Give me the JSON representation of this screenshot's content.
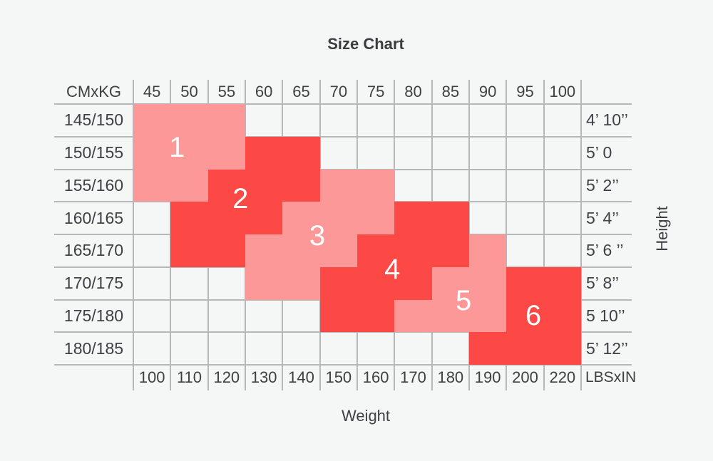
{
  "colors": {
    "red": "#fc4945",
    "pink": "#fd9899",
    "grid_line": "#b4b8b9",
    "text": "#3e4144",
    "number_text": "#ffffff",
    "background": "#f5f6f6"
  },
  "chart_data": {
    "type": "heatmap",
    "title": "Size Chart",
    "xlabel": "Weight",
    "ylabel": "Height",
    "corner_top_left": "CMxKG",
    "corner_bottom_right": "LBSxIN",
    "x_ticks_top_kg": [
      "45",
      "50",
      "55",
      "60",
      "65",
      "70",
      "75",
      "80",
      "85",
      "90",
      "95",
      "100"
    ],
    "x_ticks_bottom_lbs": [
      "100",
      "110",
      "120",
      "130",
      "140",
      "150",
      "160",
      "170",
      "180",
      "190",
      "200",
      "220"
    ],
    "y_ticks_left_cm": [
      "145/150",
      "150/155",
      "155/160",
      "160/165",
      "165/170",
      "170/175",
      "175/180",
      "180/185"
    ],
    "y_ticks_right_in": [
      "4’ 10’’",
      "5’ 0",
      "5’ 2’’",
      "5’ 4’’",
      "5’ 6 ’’",
      "5’ 8’’",
      "5 10’’",
      "5’ 12’’"
    ],
    "grid_rows": [
      "111.........",
      "11122.......",
      "1122233.....",
      ".22233344...",
      ".223334445..",
      "...334445566",
      ".....4455566",
      ".........666"
    ],
    "sizes": [
      {
        "size": "1",
        "color": "pink",
        "label_u": 1.17,
        "label_v": 1.33
      },
      {
        "size": "2",
        "color": "red",
        "label_u": 2.87,
        "label_v": 2.91
      },
      {
        "size": "3",
        "color": "pink",
        "label_u": 4.93,
        "label_v": 4.04
      },
      {
        "size": "4",
        "color": "red",
        "label_u": 6.94,
        "label_v": 5.07
      },
      {
        "size": "5",
        "color": "pink",
        "label_u": 8.85,
        "label_v": 6.03
      },
      {
        "size": "6",
        "color": "red",
        "label_u": 10.72,
        "label_v": 6.49
      }
    ]
  }
}
